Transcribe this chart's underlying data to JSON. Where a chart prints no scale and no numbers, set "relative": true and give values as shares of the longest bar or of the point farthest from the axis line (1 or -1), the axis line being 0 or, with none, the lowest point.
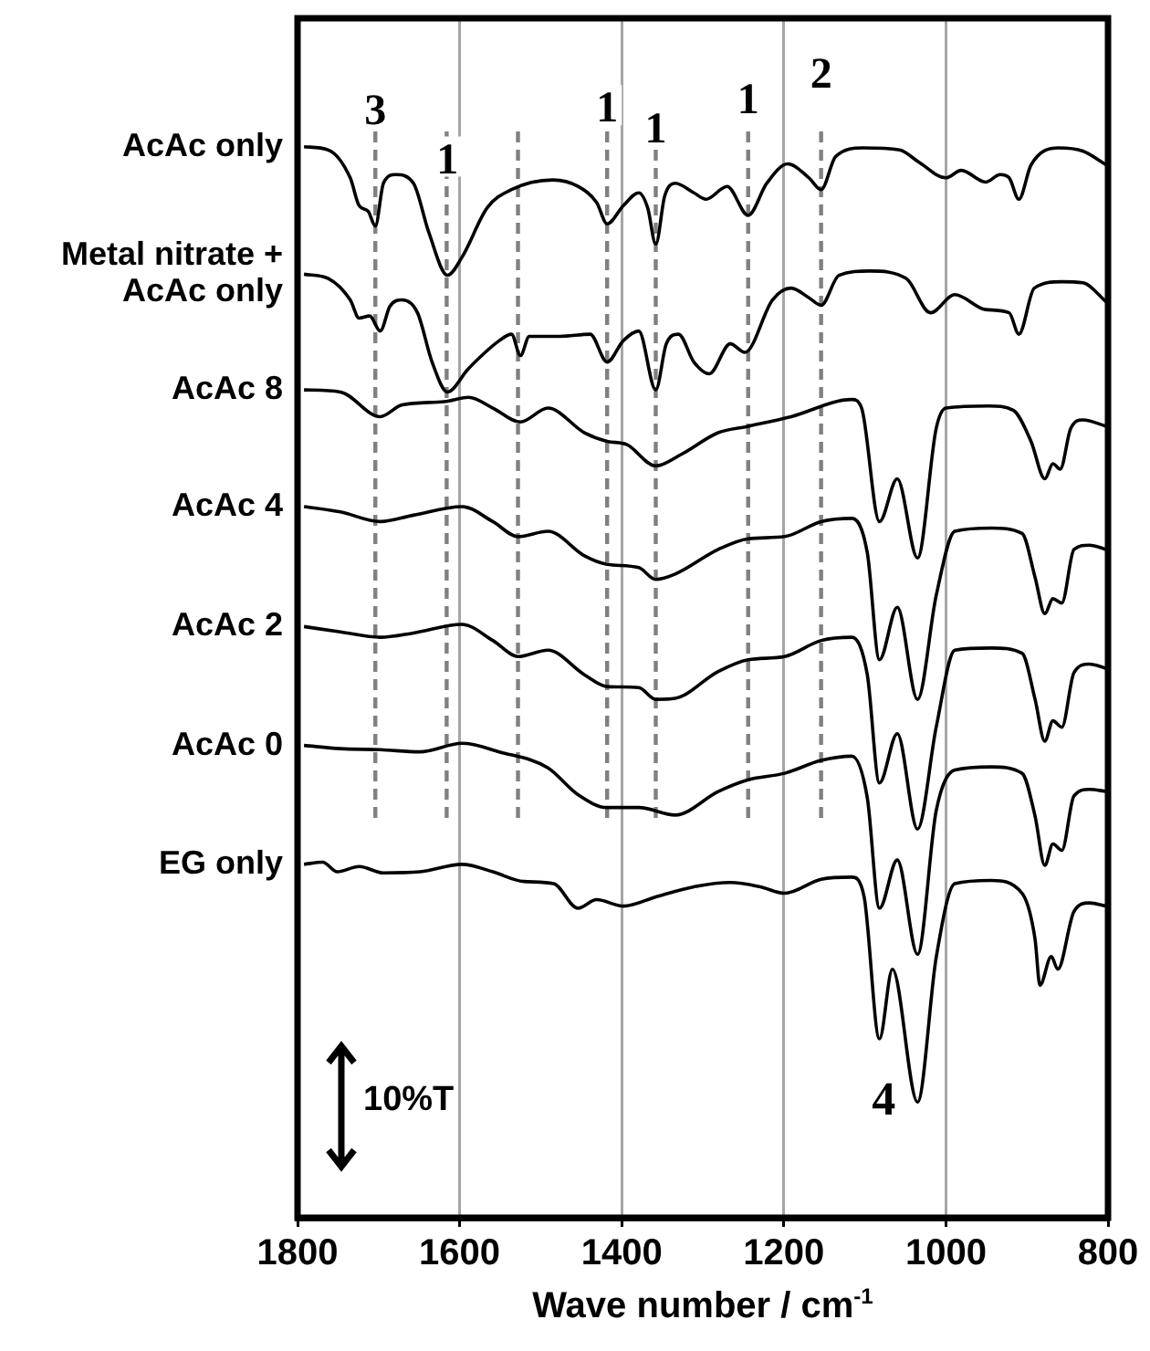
{
  "chart_data": {
    "type": "line",
    "relative": true,
    "xlabel": "Wave number / cm$^{-1}$",
    "xlim": [
      1800,
      800
    ],
    "xticks": [
      1800,
      1600,
      1400,
      1200,
      1000,
      800
    ],
    "grid": "x",
    "tick_labels": "x",
    "marker": "none",
    "line_style": "solid",
    "series": [
      {
        "name": "AcAc only",
        "color": "#000000",
        "x": [
          1792,
          1762,
          1735,
          1724,
          1713,
          1704,
          1694,
          1679,
          1657,
          1638,
          1615,
          1597,
          1566,
          1536,
          1485,
          1454,
          1431,
          1418,
          1398,
          1379,
          1368,
          1358,
          1347,
          1334,
          1311,
          1296,
          1270,
          1244,
          1221,
          1195,
          1169,
          1154,
          1136,
          1102,
          1057,
          1034,
          1000,
          981,
          951,
          933,
          922,
          910,
          895,
          861,
          831,
          802
        ],
        "values": [
          1.0,
          0.997,
          0.971,
          0.945,
          0.94,
          0.926,
          0.966,
          0.974,
          0.966,
          0.92,
          0.88,
          0.897,
          0.943,
          0.96,
          0.969,
          0.963,
          0.948,
          0.928,
          0.945,
          0.957,
          0.943,
          0.909,
          0.954,
          0.966,
          0.957,
          0.951,
          0.963,
          0.936,
          0.966,
          0.984,
          0.971,
          0.96,
          0.991,
          0.999,
          0.997,
          0.986,
          0.971,
          0.978,
          0.967,
          0.974,
          0.971,
          0.951,
          0.983,
          0.999,
          0.996,
          0.983
        ]
      },
      {
        "name": "Metal nitrate + AcAc only",
        "color": "#000000",
        "x": [
          1792,
          1762,
          1735,
          1724,
          1711,
          1698,
          1686,
          1671,
          1652,
          1634,
          1615,
          1589,
          1551,
          1536,
          1525,
          1514,
          1476,
          1439,
          1418,
          1398,
          1379,
          1358,
          1345,
          1330,
          1311,
          1292,
          1266,
          1248,
          1214,
          1191,
          1169,
          1154,
          1132,
          1094,
          1049,
          1019,
          989,
          951,
          922,
          910,
          891,
          857,
          831,
          802
        ],
        "values": [
          0.881,
          0.877,
          0.857,
          0.84,
          0.842,
          0.828,
          0.851,
          0.857,
          0.845,
          0.799,
          0.771,
          0.793,
          0.819,
          0.825,
          0.805,
          0.823,
          0.823,
          0.825,
          0.799,
          0.819,
          0.828,
          0.773,
          0.816,
          0.825,
          0.799,
          0.788,
          0.816,
          0.808,
          0.857,
          0.868,
          0.859,
          0.852,
          0.88,
          0.884,
          0.877,
          0.845,
          0.862,
          0.848,
          0.845,
          0.825,
          0.868,
          0.874,
          0.873,
          0.855
        ]
      },
      {
        "name": "AcAc 8",
        "color": "#000000",
        "x": [
          1792,
          1747,
          1698,
          1671,
          1619,
          1589,
          1559,
          1525,
          1491,
          1446,
          1418,
          1394,
          1358,
          1326,
          1281,
          1244,
          1191,
          1116,
          1104,
          1082,
          1060,
          1035,
          1012,
          1000,
          947,
          917,
          895,
          878,
          868,
          859,
          846,
          831,
          802
        ],
        "values": [
          0.773,
          0.771,
          0.748,
          0.759,
          0.762,
          0.766,
          0.756,
          0.743,
          0.756,
          0.733,
          0.725,
          0.722,
          0.702,
          0.713,
          0.733,
          0.739,
          0.748,
          0.764,
          0.756,
          0.65,
          0.69,
          0.616,
          0.737,
          0.756,
          0.758,
          0.754,
          0.725,
          0.69,
          0.704,
          0.699,
          0.737,
          0.745,
          0.739
        ]
      },
      {
        "name": "AcAc 4",
        "color": "#000000",
        "x": [
          1792,
          1747,
          1698,
          1657,
          1597,
          1559,
          1528,
          1491,
          1446,
          1418,
          1379,
          1358,
          1334,
          1281,
          1244,
          1199,
          1154,
          1116,
          1097,
          1082,
          1060,
          1035,
          1012,
          989,
          944,
          906,
          890,
          878,
          868,
          857,
          842,
          823,
          802
        ],
        "values": [
          0.664,
          0.659,
          0.65,
          0.656,
          0.664,
          0.65,
          0.636,
          0.641,
          0.618,
          0.61,
          0.607,
          0.596,
          0.601,
          0.624,
          0.634,
          0.636,
          0.65,
          0.653,
          0.621,
          0.521,
          0.57,
          0.484,
          0.581,
          0.641,
          0.644,
          0.639,
          0.598,
          0.564,
          0.578,
          0.574,
          0.624,
          0.628,
          0.624
        ]
      },
      {
        "name": "AcAc 2",
        "color": "#000000",
        "x": [
          1792,
          1747,
          1698,
          1657,
          1597,
          1559,
          1528,
          1491,
          1446,
          1418,
          1379,
          1358,
          1334,
          1281,
          1244,
          1199,
          1154,
          1116,
          1097,
          1082,
          1060,
          1035,
          1012,
          989,
          944,
          906,
          890,
          878,
          868,
          857,
          842,
          823,
          802
        ],
        "values": [
          0.552,
          0.547,
          0.542,
          0.546,
          0.554,
          0.539,
          0.524,
          0.53,
          0.507,
          0.496,
          0.495,
          0.484,
          0.485,
          0.51,
          0.521,
          0.524,
          0.539,
          0.542,
          0.507,
          0.406,
          0.452,
          0.363,
          0.458,
          0.53,
          0.532,
          0.527,
          0.484,
          0.445,
          0.464,
          0.458,
          0.509,
          0.517,
          0.513
        ]
      },
      {
        "name": "AcAc 0",
        "color": "#000000",
        "x": [
          1792,
          1747,
          1698,
          1649,
          1597,
          1551,
          1491,
          1454,
          1418,
          1379,
          1334,
          1281,
          1244,
          1199,
          1154,
          1116,
          1097,
          1082,
          1060,
          1035,
          1012,
          989,
          944,
          906,
          890,
          878,
          868,
          857,
          842,
          823,
          802
        ],
        "values": [
          0.441,
          0.438,
          0.437,
          0.435,
          0.443,
          0.435,
          0.42,
          0.395,
          0.383,
          0.383,
          0.376,
          0.398,
          0.409,
          0.415,
          0.427,
          0.431,
          0.392,
          0.289,
          0.334,
          0.246,
          0.38,
          0.418,
          0.421,
          0.415,
          0.375,
          0.329,
          0.349,
          0.343,
          0.394,
          0.4,
          0.398
        ]
      },
      {
        "name": "EG only",
        "color": "#000000",
        "x": [
          1792,
          1769,
          1751,
          1724,
          1694,
          1649,
          1597,
          1559,
          1521,
          1484,
          1454,
          1431,
          1398,
          1356,
          1311,
          1266,
          1229,
          1199,
          1154,
          1116,
          1101,
          1082,
          1066,
          1035,
          1012,
          989,
          944,
          906,
          890,
          884,
          870,
          862,
          842,
          823,
          802
        ],
        "values": [
          0.33,
          0.332,
          0.323,
          0.328,
          0.322,
          0.323,
          0.33,
          0.323,
          0.314,
          0.312,
          0.289,
          0.297,
          0.291,
          0.3,
          0.309,
          0.313,
          0.309,
          0.303,
          0.316,
          0.318,
          0.3,
          0.167,
          0.232,
          0.108,
          0.243,
          0.312,
          0.315,
          0.303,
          0.26,
          0.217,
          0.244,
          0.232,
          0.286,
          0.294,
          0.291
        ]
      }
    ],
    "ref_lines": [
      {
        "axis": "x",
        "value": 1704,
        "color": "#808080",
        "line_style": "dashed"
      },
      {
        "axis": "x",
        "value": 1616,
        "color": "#808080",
        "line_style": "dashed"
      },
      {
        "axis": "x",
        "value": 1528,
        "color": "#808080",
        "line_style": "dashed"
      },
      {
        "axis": "x",
        "value": 1418,
        "color": "#808080",
        "line_style": "dashed"
      },
      {
        "axis": "x",
        "value": 1358,
        "color": "#808080",
        "line_style": "dashed"
      },
      {
        "axis": "x",
        "value": 1244,
        "color": "#808080",
        "line_style": "dashed"
      },
      {
        "axis": "x",
        "value": 1154,
        "color": "#808080",
        "line_style": "dashed"
      }
    ],
    "annotations": [
      {
        "text": "3",
        "x": 1704,
        "y": 0.926
      },
      {
        "text": "1",
        "x": 1615,
        "y": 0.88
      },
      {
        "text": "1",
        "x": 1418,
        "y": 0.928
      },
      {
        "text": "1",
        "x": 1358,
        "y": 0.909
      },
      {
        "text": "1",
        "x": 1244,
        "y": 0.936
      },
      {
        "text": "2",
        "x": 1154,
        "y": 0.96
      },
      {
        "text": "4",
        "x": 1035,
        "y": 0.108
      },
      "10%T"
    ]
  }
}
